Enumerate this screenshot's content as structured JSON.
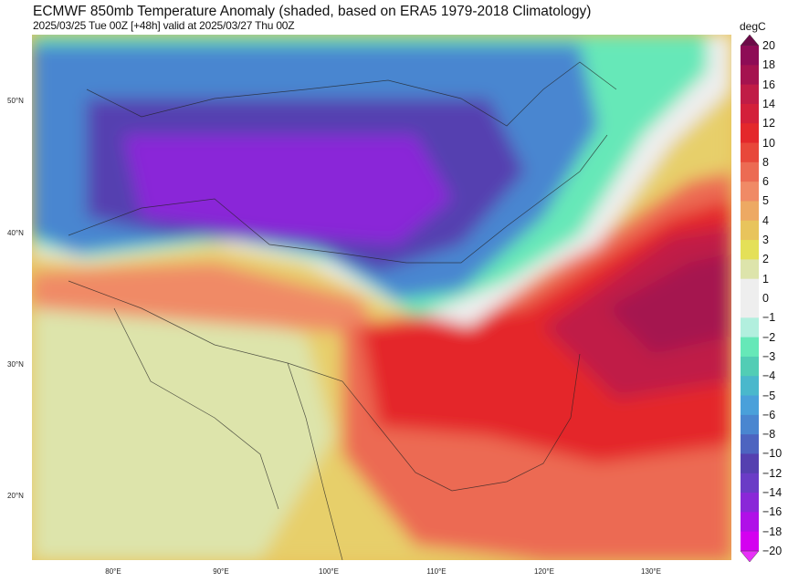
{
  "header": {
    "title": "ECMWF 850mb Temperature Anomaly (shaded, based on ERA5 1979-2018 Climatology)",
    "subtitle": "2025/03/25 Tue 00Z [+48h] valid at 2025/03/27 Thu 00Z"
  },
  "map": {
    "lat_labels": [
      "50°N",
      "40°N",
      "30°N",
      "20°N"
    ],
    "lon_labels": [
      "80°E",
      "90°E",
      "100°E",
      "110°E",
      "120°E",
      "130°E"
    ]
  },
  "colorbar": {
    "unit": "degC",
    "labels": [
      "20",
      "18",
      "16",
      "14",
      "12",
      "10",
      "8",
      "6",
      "5",
      "4",
      "3",
      "2",
      "1",
      "0",
      "−1",
      "−2",
      "−3",
      "−4",
      "−5",
      "−6",
      "−8",
      "−10",
      "−12",
      "−14",
      "−16",
      "−18",
      "−20"
    ],
    "colors": [
      "#8e0c56",
      "#a5134f",
      "#c01c46",
      "#d3203a",
      "#e4282b",
      "#e8483a",
      "#ec6b53",
      "#f08a66",
      "#eda963",
      "#e8c45c",
      "#e4e058",
      "#dde4ab",
      "#eeeeee",
      "#eeeeee",
      "#b2efde",
      "#66e8b8",
      "#52cdb5",
      "#4ab8cc",
      "#4aa0da",
      "#4a86d0",
      "#4d64c0",
      "#5540b0",
      "#6a3cc6",
      "#8a28d8",
      "#b010e8",
      "#d400f0"
    ],
    "extend_max_color": "#6d0a48",
    "extend_min_color": "#e830f8"
  }
}
